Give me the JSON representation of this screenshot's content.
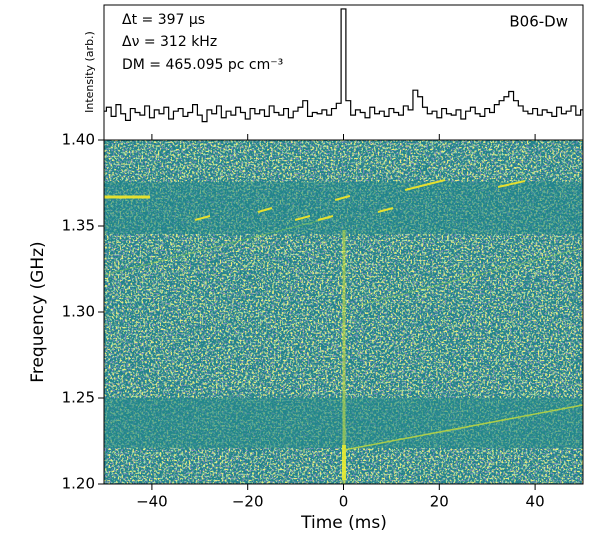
{
  "chart_data": [
    {
      "type": "line",
      "drawstyle": "steps-mid",
      "ylabel": "Intensity (arb.)",
      "color": "#000000",
      "annotations": [
        "Δt  = 397 μs",
        "Δν  = 312 kHz",
        "DM = 465.095 pc cm⁻³"
      ],
      "label": "B06-Dw",
      "xlim": [
        -50,
        50
      ],
      "ylim": [
        0,
        1.03
      ],
      "x": [
        -50,
        -49,
        -48,
        -47,
        -46,
        -45,
        -44,
        -43,
        -42,
        -41,
        -40,
        -39,
        -38,
        -37,
        -36,
        -35,
        -34,
        -33,
        -32,
        -31,
        -30,
        -29,
        -28,
        -27,
        -26,
        -25,
        -24,
        -23,
        -22,
        -21,
        -20,
        -19,
        -18,
        -17,
        -16,
        -15,
        -14,
        -13,
        -12,
        -11,
        -10,
        -9,
        -8,
        -7,
        -6,
        -5,
        -4,
        -3,
        -2,
        -1,
        0,
        1,
        2,
        3,
        4,
        5,
        6,
        7,
        8,
        9,
        10,
        11,
        12,
        13,
        14,
        15,
        16,
        17,
        18,
        19,
        20,
        21,
        22,
        23,
        24,
        25,
        26,
        27,
        28,
        29,
        30,
        31,
        32,
        33,
        34,
        35,
        36,
        37,
        38,
        39,
        40,
        41,
        42,
        43,
        44,
        45,
        46,
        47,
        48,
        49,
        50
      ],
      "values": [
        0.22,
        0.25,
        0.18,
        0.27,
        0.2,
        0.15,
        0.24,
        0.21,
        0.19,
        0.26,
        0.17,
        0.23,
        0.2,
        0.25,
        0.16,
        0.22,
        0.24,
        0.18,
        0.21,
        0.27,
        0.19,
        0.14,
        0.23,
        0.2,
        0.26,
        0.17,
        0.22,
        0.19,
        0.25,
        0.21,
        0.16,
        0.24,
        0.2,
        0.23,
        0.18,
        0.26,
        0.21,
        0.19,
        0.24,
        0.17,
        0.22,
        0.25,
        0.3,
        0.18,
        0.21,
        0.2,
        0.23,
        0.19,
        0.24,
        0.28,
        1.0,
        0.3,
        0.19,
        0.23,
        0.21,
        0.17,
        0.25,
        0.2,
        0.22,
        0.18,
        0.24,
        0.21,
        0.19,
        0.26,
        0.23,
        0.38,
        0.33,
        0.25,
        0.2,
        0.22,
        0.17,
        0.24,
        0.2,
        0.19,
        0.23,
        0.16,
        0.22,
        0.25,
        0.2,
        0.18,
        0.24,
        0.21,
        0.27,
        0.3,
        0.33,
        0.37,
        0.3,
        0.26,
        0.22,
        0.2,
        0.24,
        0.19,
        0.23,
        0.21,
        0.18,
        0.25,
        0.2,
        0.22,
        0.26,
        0.19,
        0.23
      ]
    },
    {
      "type": "heatmap",
      "xlabel": "Time (ms)",
      "ylabel": "Frequency (GHz)",
      "xlim": [
        -50,
        50
      ],
      "ylim": [
        1.2,
        1.4
      ],
      "xticks": [
        {
          "value": -40,
          "label": "−40"
        },
        {
          "value": -20,
          "label": "−20"
        },
        0,
        20,
        40
      ],
      "yticks": [
        {
          "value": 1.2,
          "label": "1.20"
        },
        {
          "value": 1.25,
          "label": "1.25"
        },
        {
          "value": 1.3,
          "label": "1.30"
        },
        {
          "value": 1.35,
          "label": "1.35"
        },
        {
          "value": 1.4,
          "label": "1.40"
        }
      ]
    }
  ]
}
